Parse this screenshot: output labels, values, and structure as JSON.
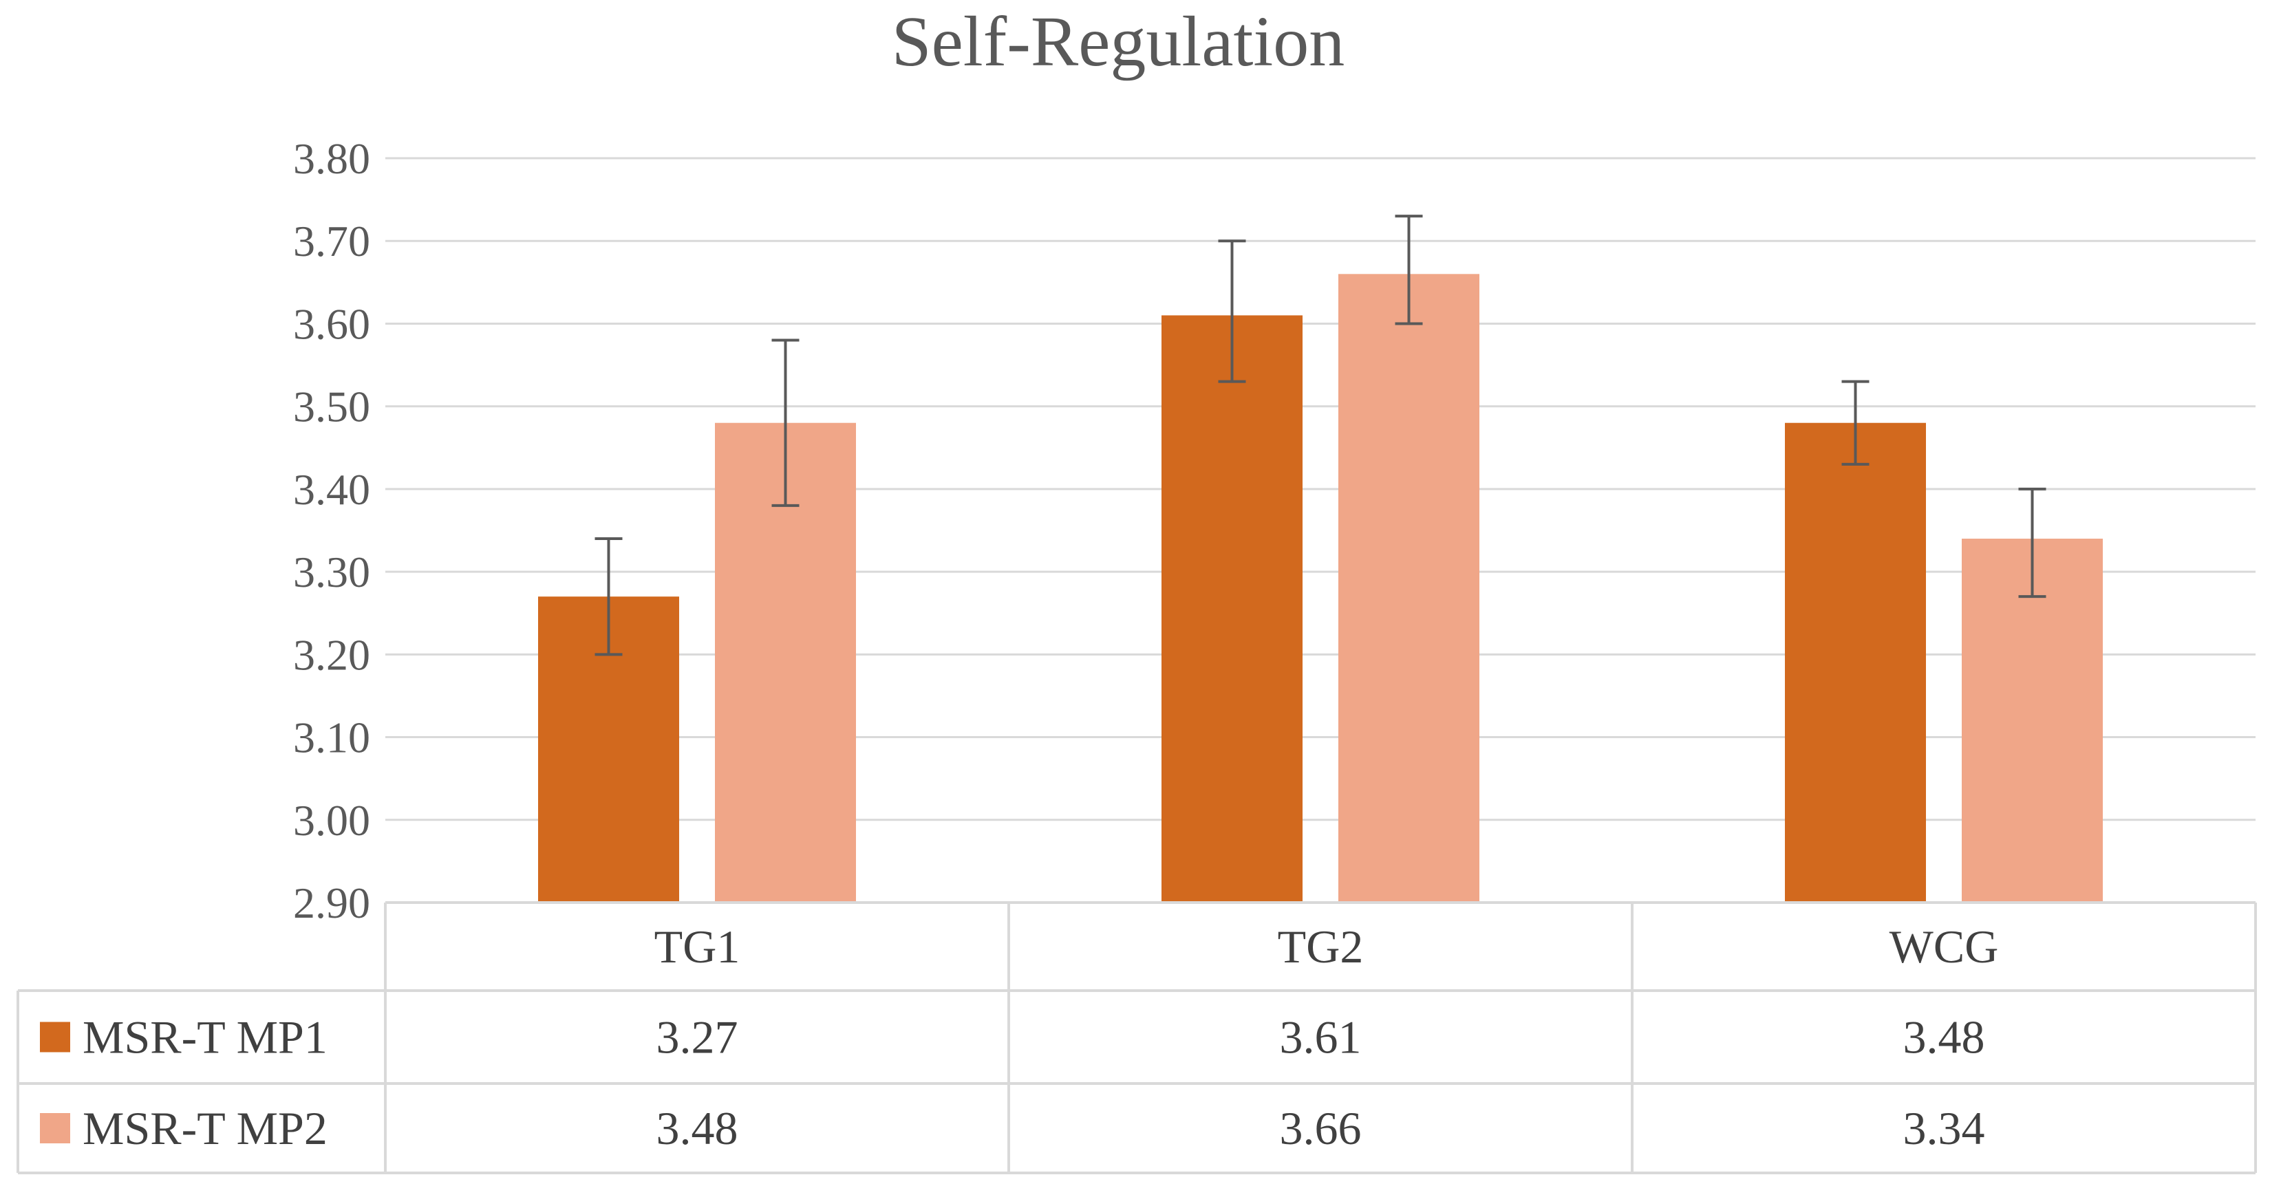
{
  "chart_data": {
    "type": "bar",
    "title": "Self-Regulation",
    "categories": [
      "TG1",
      "TG2",
      "WCG"
    ],
    "series": [
      {
        "name": "MSR-T MP1",
        "color": "#D2691E",
        "values": [
          3.27,
          3.61,
          3.48
        ],
        "value_labels": [
          "3.27",
          "3.61",
          "3.48"
        ],
        "error_low": [
          3.2,
          3.53,
          3.43
        ],
        "error_high": [
          3.34,
          3.7,
          3.53
        ]
      },
      {
        "name": "MSR-T MP2",
        "color": "#F0A688",
        "values": [
          3.48,
          3.66,
          3.34
        ],
        "value_labels": [
          "3.48",
          "3.66",
          "3.34"
        ],
        "error_low": [
          3.38,
          3.6,
          3.27
        ],
        "error_high": [
          3.58,
          3.73,
          3.4
        ]
      }
    ],
    "ylim": [
      2.9,
      3.8
    ],
    "yticks": [
      "3.80",
      "3.70",
      "3.60",
      "3.50",
      "3.40",
      "3.30",
      "3.20",
      "3.10",
      "3.00",
      "2.90"
    ],
    "grid": true,
    "legend": "data-table",
    "data_table": true
  }
}
